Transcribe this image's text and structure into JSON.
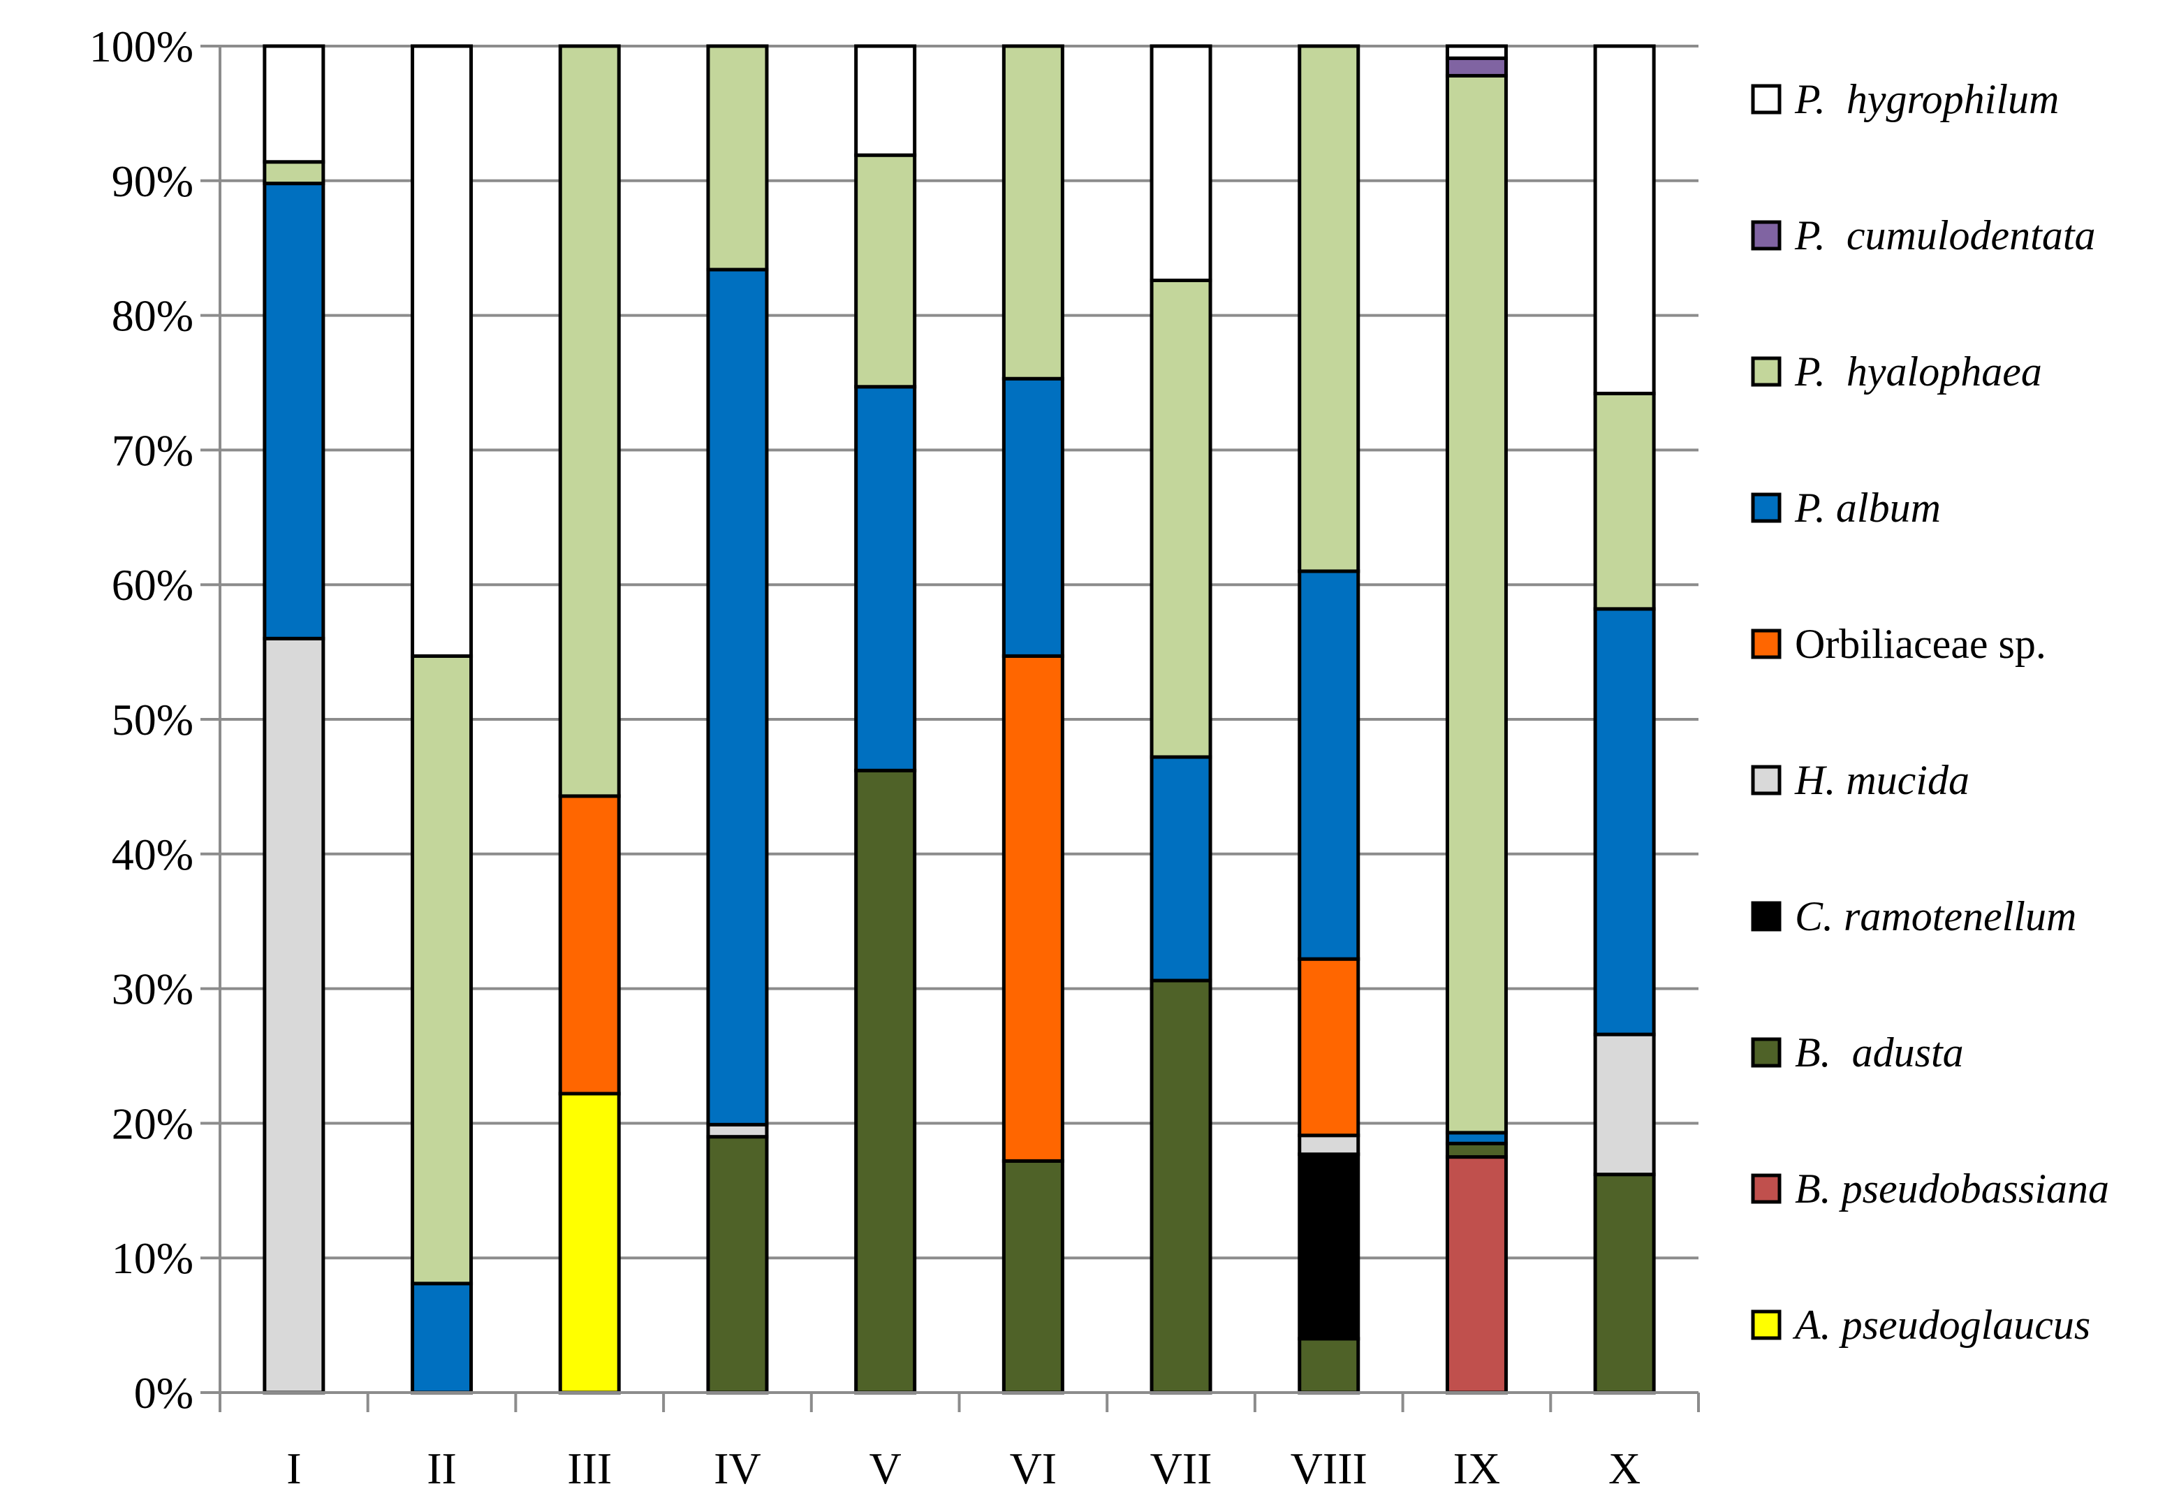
{
  "chart_data": {
    "type": "bar",
    "stacked": true,
    "percent": true,
    "title": "",
    "xlabel": "",
    "ylabel": "",
    "ylim": [
      0,
      100
    ],
    "yticks": [
      "0%",
      "10%",
      "20%",
      "30%",
      "40%",
      "50%",
      "60%",
      "70%",
      "80%",
      "90%",
      "100%"
    ],
    "grid": true,
    "legend_position": "right",
    "categories": [
      "I",
      "II",
      "III",
      "IV",
      "V",
      "VI",
      "VII",
      "VIII",
      "IX",
      "X"
    ],
    "series": [
      {
        "name": "A. pseudoglaucus",
        "color": "#FFFF00",
        "italic": true,
        "values": [
          0,
          0,
          22.2,
          0,
          0,
          0,
          0,
          0,
          0,
          0
        ]
      },
      {
        "name": "B. pseudobassiana",
        "color": "#C0504D",
        "italic": true,
        "values": [
          0,
          0,
          0,
          0,
          0,
          0,
          0,
          0,
          17.5,
          0
        ]
      },
      {
        "name": "B.  adusta",
        "color": "#4F6228",
        "italic": true,
        "values": [
          0,
          0,
          0,
          19.0,
          46.2,
          17.2,
          30.6,
          4.0,
          1.0,
          16.2
        ]
      },
      {
        "name": "C. ramotenellum",
        "color": "#000000",
        "italic": true,
        "values": [
          0,
          0,
          0,
          0,
          0,
          0,
          0,
          13.7,
          0,
          0
        ]
      },
      {
        "name": "H. mucida",
        "color": "#D9D9D9",
        "italic": true,
        "values": [
          56.0,
          0,
          0,
          0.9,
          0,
          0,
          0,
          1.4,
          0,
          10.4
        ]
      },
      {
        "name": "Orbiliaceae sp.",
        "color": "#FF6600",
        "italic": false,
        "values": [
          0,
          0,
          22.1,
          0,
          0,
          37.5,
          0,
          13.1,
          0,
          0
        ]
      },
      {
        "name": "P. album",
        "color": "#0070C0",
        "italic": true,
        "values": [
          33.8,
          8.1,
          0,
          63.5,
          28.5,
          20.6,
          16.6,
          28.8,
          0.8,
          31.6
        ]
      },
      {
        "name": "P.  hyalophaea",
        "color": "#C3D69B",
        "italic": true,
        "values": [
          1.6,
          46.6,
          55.7,
          16.6,
          17.2,
          24.7,
          35.4,
          39.0,
          78.5,
          16.0
        ]
      },
      {
        "name": "P.  cumulodentata",
        "color": "#8064A2",
        "italic": true,
        "values": [
          0,
          0,
          0,
          0,
          0,
          0,
          0,
          0,
          1.3,
          0
        ]
      },
      {
        "name": "P.  hygrophilum",
        "color": "#FFFFFF",
        "italic": true,
        "values": [
          8.6,
          45.3,
          0,
          0,
          8.1,
          0,
          17.4,
          0,
          0.9,
          25.8
        ]
      }
    ]
  }
}
